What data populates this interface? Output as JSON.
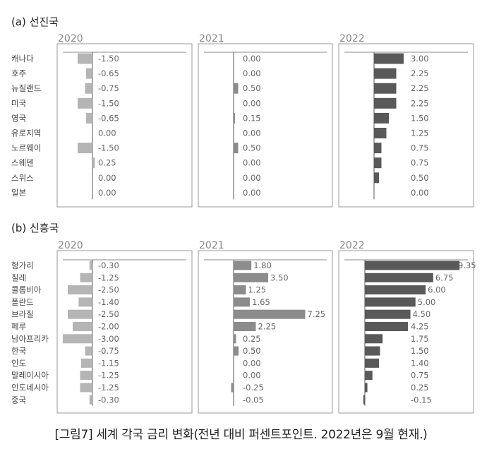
{
  "caption": "[그림7] 세계 각국 금리 변화(전년 대비 퍼센트포인트. 2022년은 9월 현재.)",
  "colors": {
    "bar_light": "#b5b5b5",
    "bar_mid": "#8c8c8c",
    "bar_dark": "#595959",
    "frame": "#9a9a9a",
    "axis": "#555555"
  },
  "chart_data": [
    {
      "type": "bar",
      "orientation": "horizontal",
      "group_label": "(a) 선진국",
      "categories": [
        "캐나다",
        "호주",
        "뉴질랜드",
        "미국",
        "영국",
        "유로지역",
        "노르웨이",
        "스웨덴",
        "스위스",
        "일본"
      ],
      "series": [
        {
          "name": "2020",
          "values": [
            -1.5,
            -0.65,
            -0.75,
            -1.5,
            -0.65,
            0.0,
            -1.5,
            0.25,
            0.0,
            0.0
          ],
          "labels": [
            "-1.50",
            "-0.65",
            "-0.75",
            "-1.50",
            "-0.65",
            "0.00",
            "-1.50",
            "0.25",
            "0.00",
            "0.00"
          ]
        },
        {
          "name": "2021",
          "values": [
            0.0,
            0.0,
            0.5,
            0.0,
            0.15,
            0.0,
            0.5,
            0.0,
            0.0,
            0.0
          ],
          "labels": [
            "0.00",
            "0.00",
            "0.50",
            "0.00",
            "0.15",
            "0.00",
            "0.50",
            "0.00",
            "0.00",
            "0.00"
          ]
        },
        {
          "name": "2022",
          "values": [
            3.0,
            2.25,
            2.25,
            2.25,
            1.5,
            1.25,
            0.75,
            0.75,
            0.5,
            0.0
          ],
          "labels": [
            "3.00",
            "2.25",
            "2.25",
            "2.25",
            "1.50",
            "1.25",
            "0.75",
            "0.75",
            "0.50",
            "0.00"
          ]
        }
      ]
    },
    {
      "type": "bar",
      "orientation": "horizontal",
      "group_label": "(b) 신흥국",
      "categories": [
        "헝가리",
        "칠레",
        "콜롬비아",
        "폴란드",
        "브라질",
        "페루",
        "남아프리카",
        "한국",
        "인도",
        "말레이시아",
        "인도네시아",
        "중국"
      ],
      "series": [
        {
          "name": "2020",
          "values": [
            -0.3,
            -1.25,
            -2.5,
            -1.4,
            -2.5,
            -2.0,
            -3.0,
            -0.75,
            -1.15,
            -1.25,
            -1.25,
            -0.3
          ],
          "labels": [
            "-0.30",
            "-1.25",
            "-2.50",
            "-1.40",
            "-2.50",
            "-2.00",
            "-3.00",
            "-0.75",
            "-1.15",
            "-1.25",
            "-1.25",
            "-0.30"
          ]
        },
        {
          "name": "2021",
          "values": [
            1.8,
            3.5,
            1.25,
            1.65,
            7.25,
            2.25,
            0.25,
            0.5,
            0.0,
            0.0,
            -0.25,
            -0.05
          ],
          "labels": [
            "1.80",
            "3.50",
            "1.25",
            "1.65",
            "7.25",
            "2.25",
            "0.25",
            "0.50",
            "0.00",
            "0.00",
            "-0.25",
            "-0.05"
          ]
        },
        {
          "name": "2022",
          "values": [
            9.35,
            6.75,
            6.0,
            5.0,
            4.5,
            4.25,
            1.75,
            1.5,
            1.4,
            0.75,
            0.25,
            -0.15
          ],
          "labels": [
            "9.35",
            "6.75",
            "6.00",
            "5.00",
            "4.50",
            "4.25",
            "1.75",
            "1.50",
            "1.40",
            "0.75",
            "0.25",
            "-0.15"
          ]
        }
      ]
    }
  ]
}
